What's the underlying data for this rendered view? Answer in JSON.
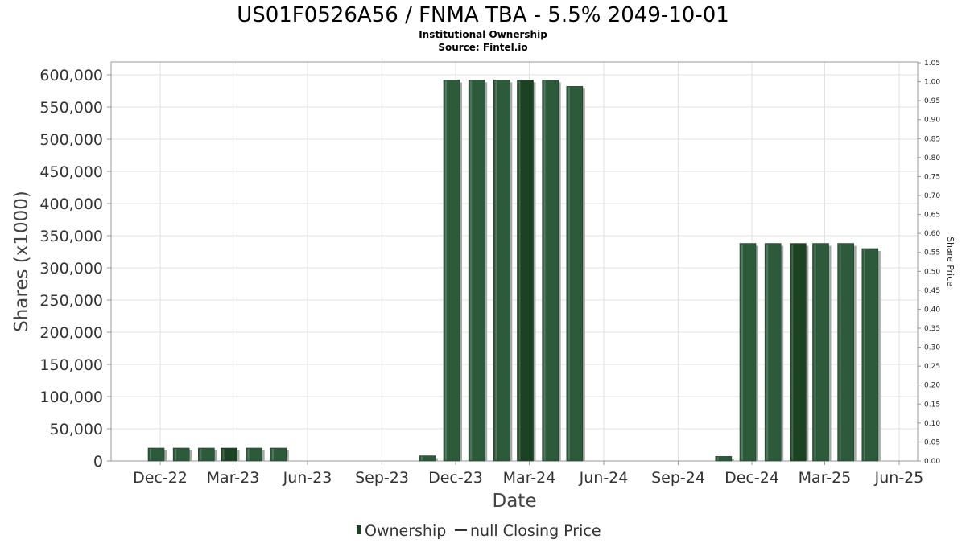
{
  "chart_data": {
    "type": "bar",
    "title": "US01F0526A56 / FNMA TBA - 5.5% 2049-10-01",
    "subtitle_lines": [
      "Institutional Ownership",
      "Source: Fintel.io"
    ],
    "xlabel": "Date",
    "ylabel": "Shares (x1000)",
    "y2label": "Share Price",
    "ylim": [
      0,
      620000
    ],
    "y2lim": [
      0,
      1.05
    ],
    "yticks": [
      "0",
      "50,000",
      "100,000",
      "150,000",
      "200,000",
      "250,000",
      "300,000",
      "350,000",
      "400,000",
      "450,000",
      "500,000",
      "550,000",
      "600,000"
    ],
    "y2ticks": [
      "0.00",
      "0.05",
      "0.10",
      "0.15",
      "0.20",
      "0.25",
      "0.30",
      "0.35",
      "0.40",
      "0.45",
      "0.50",
      "0.55",
      "0.60",
      "0.65",
      "0.70",
      "0.75",
      "0.80",
      "0.85",
      "0.90",
      "0.95",
      "1.00",
      "1.05"
    ],
    "xticks": [
      "Dec-22",
      "Mar-23",
      "Jun-23",
      "Sep-23",
      "Dec-23",
      "Mar-24",
      "Jun-24",
      "Sep-24",
      "Dec-24",
      "Mar-25",
      "Jun-25"
    ],
    "grid": true,
    "legend_position": "bottom-center",
    "series": [
      {
        "name": "Ownership",
        "color": "#2e5a3c",
        "highlight_color": "#1b4323",
        "x": [
          "2022-12-01",
          "2023-01-01",
          "2023-02-01",
          "2023-03-01",
          "2023-04-01",
          "2023-05-01",
          "2023-11-01",
          "2023-12-01",
          "2024-01-01",
          "2024-02-01",
          "2024-03-01",
          "2024-04-01",
          "2024-05-01",
          "2024-11-01",
          "2024-12-01",
          "2025-01-01",
          "2025-02-01",
          "2025-03-01",
          "2025-04-01",
          "2025-05-01"
        ],
        "values": [
          20000,
          20000,
          20000,
          20000,
          20000,
          20000,
          8000,
          592000,
          592000,
          592000,
          592000,
          592000,
          582000,
          7000,
          338000,
          338000,
          338000,
          338000,
          338000,
          330000
        ],
        "highlighted": [
          false,
          false,
          false,
          true,
          false,
          false,
          false,
          false,
          false,
          false,
          true,
          false,
          false,
          false,
          false,
          false,
          true,
          false,
          false,
          false
        ]
      },
      {
        "name": "null Closing Price",
        "color": "#333333",
        "values": []
      }
    ]
  }
}
